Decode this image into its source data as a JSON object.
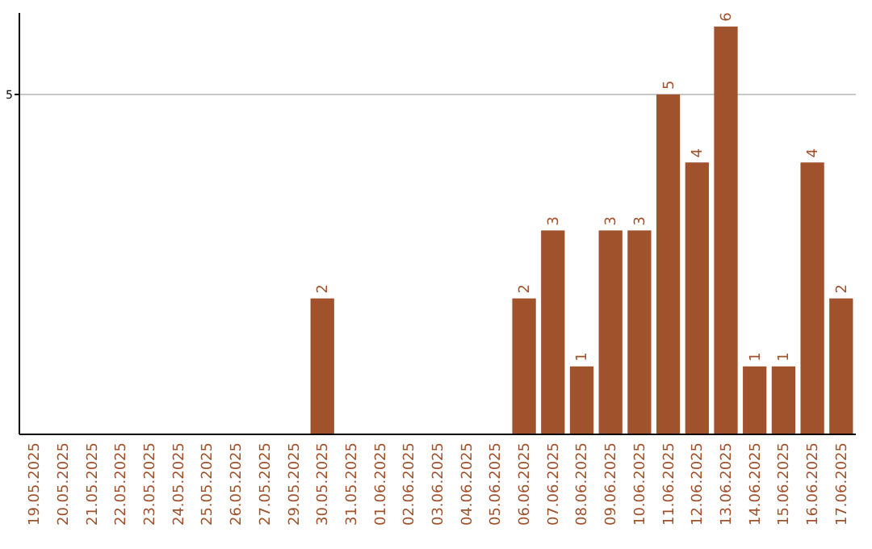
{
  "chart_data": {
    "type": "bar",
    "categories": [
      "19.05.2025",
      "20.05.2025",
      "21.05.2025",
      "22.05.2025",
      "23.05.2025",
      "24.05.2025",
      "25.05.2025",
      "26.05.2025",
      "27.05.2025",
      "29.05.2025",
      "30.05.2025",
      "31.05.2025",
      "01.06.2025",
      "02.06.2025",
      "03.06.2025",
      "04.06.2025",
      "05.06.2025",
      "06.06.2025",
      "07.06.2025",
      "08.06.2025",
      "09.06.2025",
      "10.06.2025",
      "11.06.2025",
      "12.06.2025",
      "13.06.2025",
      "14.06.2025",
      "15.06.2025",
      "16.06.2025",
      "17.06.2025"
    ],
    "values": [
      0,
      0,
      0,
      0,
      0,
      0,
      0,
      0,
      0,
      0,
      2,
      0,
      0,
      0,
      0,
      0,
      0,
      2,
      3,
      1,
      3,
      3,
      5,
      4,
      6,
      1,
      1,
      4,
      2
    ],
    "value_labels": [
      null,
      null,
      null,
      null,
      null,
      null,
      null,
      null,
      null,
      null,
      "2",
      null,
      null,
      null,
      null,
      null,
      null,
      "2",
      "3",
      "1",
      "3",
      "3",
      "5",
      "4",
      "6",
      "1",
      "1",
      "4",
      "2"
    ],
    "color": "#a0522d",
    "ylim": [
      0,
      6.2
    ],
    "yticks": [
      5
    ],
    "grid": "y"
  }
}
